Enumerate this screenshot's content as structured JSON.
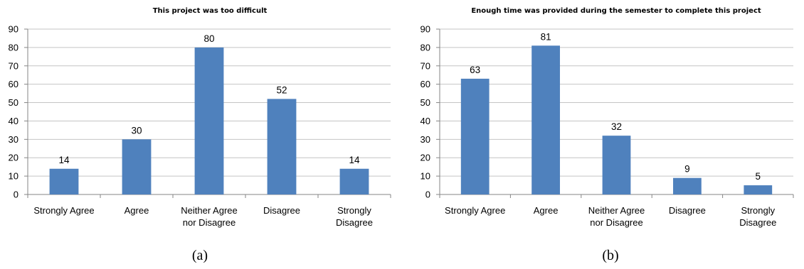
{
  "bar_color": "#4F81BD",
  "grid_color": "#C4C4C4",
  "chart_data": [
    {
      "type": "bar",
      "title": "This project was too difficult",
      "caption": "(a)",
      "categories": [
        [
          "Strongly Agree"
        ],
        [
          "Agree"
        ],
        [
          "Neither Agree",
          "nor Disagree"
        ],
        [
          "Disagree"
        ],
        [
          "Strongly",
          "Disagree"
        ]
      ],
      "values": [
        14,
        30,
        80,
        52,
        14
      ],
      "ylim": [
        0,
        90
      ],
      "yticks": [
        0,
        10,
        20,
        30,
        40,
        50,
        60,
        70,
        80,
        90
      ],
      "grid": true,
      "data_labels": true
    },
    {
      "type": "bar",
      "title": "Enough time was provided during the semester to complete this project",
      "caption": "(b)",
      "categories": [
        [
          "Strongly Agree"
        ],
        [
          "Agree"
        ],
        [
          "Neither Agree",
          "nor Disagree"
        ],
        [
          "Disagree"
        ],
        [
          "Strongly",
          "Disagree"
        ]
      ],
      "values": [
        63,
        81,
        32,
        9,
        5
      ],
      "ylim": [
        0,
        90
      ],
      "yticks": [
        0,
        10,
        20,
        30,
        40,
        50,
        60,
        70,
        80,
        90
      ],
      "grid": true,
      "data_labels": true
    }
  ]
}
